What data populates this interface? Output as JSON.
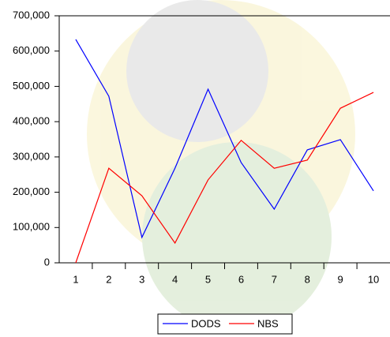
{
  "chart_data": {
    "type": "line",
    "categories": [
      "1",
      "2",
      "3",
      "4",
      "5",
      "6",
      "7",
      "8",
      "9",
      "10"
    ],
    "series": [
      {
        "name": "DODS",
        "color": "#0000ff",
        "values": [
          633000,
          472000,
          72000,
          268000,
          492000,
          284000,
          152000,
          320000,
          349000,
          204000
        ]
      },
      {
        "name": "NBS",
        "color": "#ff0000",
        "values": [
          0,
          268000,
          190000,
          56000,
          235000,
          347000,
          268000,
          291000,
          438000,
          483000
        ]
      }
    ],
    "ylim": [
      0,
      700000
    ],
    "yticks": [
      0,
      {
        "value": 100000,
        "label": "100,000"
      },
      {
        "value": 200000,
        "label": "200,000"
      },
      {
        "value": 300000,
        "label": "300,000"
      },
      {
        "value": 400000,
        "label": "400,000"
      },
      {
        "value": 500000,
        "label": "500,000"
      },
      {
        "value": 600000,
        "label": "600,000"
      },
      {
        "value": 700000,
        "label": "700,000"
      }
    ],
    "legend": "bottom"
  }
}
